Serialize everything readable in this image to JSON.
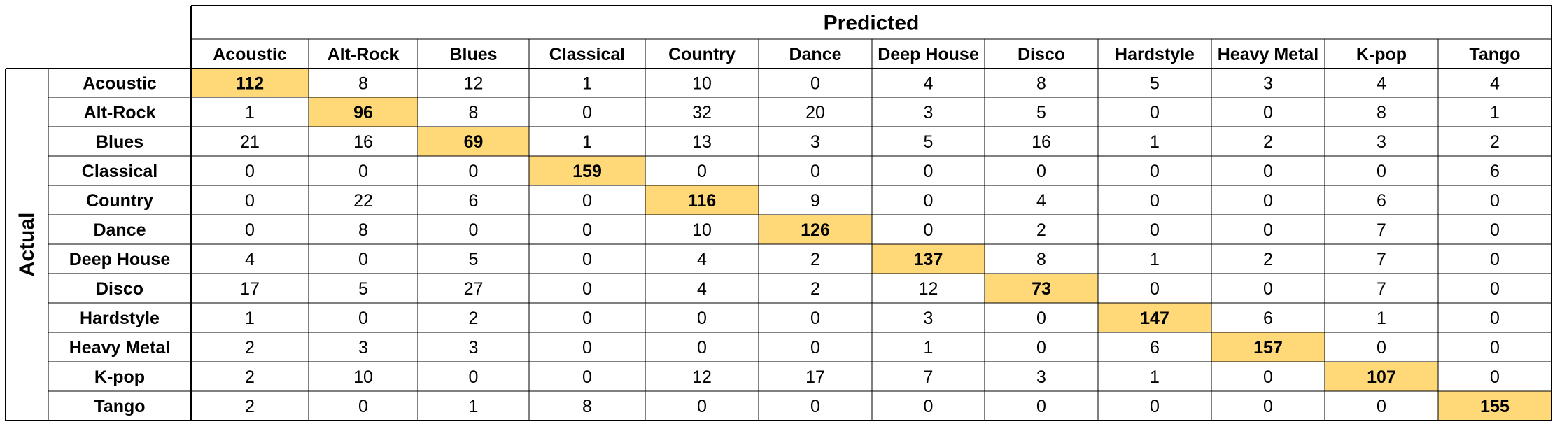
{
  "chart_data": {
    "type": "table",
    "title": "",
    "column_axis_label": "Predicted",
    "row_axis_label": "Actual",
    "highlight_color": "#FFD978",
    "columns": [
      "Acoustic",
      "Alt-Rock",
      "Blues",
      "Classical",
      "Country",
      "Dance",
      "Deep House",
      "Disco",
      "Hardstyle",
      "Heavy Metal",
      "K-pop",
      "Tango"
    ],
    "rows": [
      "Acoustic",
      "Alt-Rock",
      "Blues",
      "Classical",
      "Country",
      "Dance",
      "Deep House",
      "Disco",
      "Hardstyle",
      "Heavy Metal",
      "K-pop",
      "Tango"
    ],
    "values": [
      [
        112,
        8,
        12,
        1,
        10,
        0,
        4,
        8,
        5,
        3,
        4,
        4
      ],
      [
        1,
        96,
        8,
        0,
        32,
        20,
        3,
        5,
        0,
        0,
        8,
        1
      ],
      [
        21,
        16,
        69,
        1,
        13,
        3,
        5,
        16,
        1,
        2,
        3,
        2
      ],
      [
        0,
        0,
        0,
        159,
        0,
        0,
        0,
        0,
        0,
        0,
        0,
        6
      ],
      [
        0,
        22,
        6,
        0,
        116,
        9,
        0,
        4,
        0,
        0,
        6,
        0
      ],
      [
        0,
        8,
        0,
        0,
        10,
        126,
        0,
        2,
        0,
        0,
        7,
        0
      ],
      [
        4,
        0,
        5,
        0,
        4,
        2,
        137,
        8,
        1,
        2,
        7,
        0
      ],
      [
        17,
        5,
        27,
        0,
        4,
        2,
        12,
        73,
        0,
        0,
        7,
        0
      ],
      [
        1,
        0,
        2,
        0,
        0,
        0,
        3,
        0,
        147,
        6,
        1,
        0
      ],
      [
        2,
        3,
        3,
        0,
        0,
        0,
        1,
        0,
        6,
        157,
        0,
        0
      ],
      [
        2,
        10,
        0,
        0,
        12,
        17,
        7,
        3,
        1,
        0,
        107,
        0
      ],
      [
        2,
        0,
        1,
        8,
        0,
        0,
        0,
        0,
        0,
        0,
        0,
        155
      ]
    ]
  }
}
